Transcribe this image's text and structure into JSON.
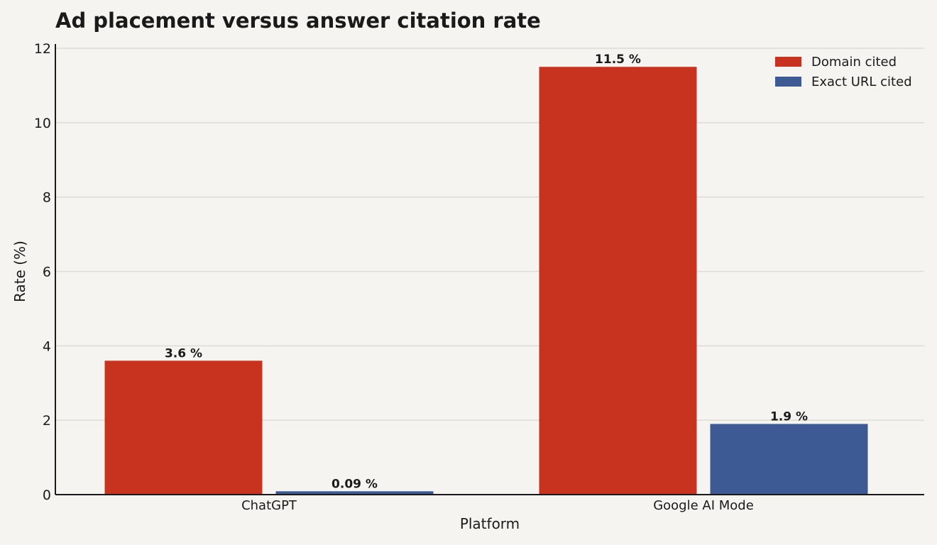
{
  "chart_data": {
    "type": "bar",
    "title": "Ad placement versus answer citation rate",
    "xlabel": "Platform",
    "ylabel": "Rate (%)",
    "categories": [
      "ChatGPT",
      "Google AI Mode"
    ],
    "series": [
      {
        "name": "Domain cited",
        "values": [
          3.6,
          11.5
        ],
        "labels": [
          "3.6 %",
          "11.5 %"
        ],
        "color": "#c8331f"
      },
      {
        "name": "Exact URL cited",
        "values": [
          0.09,
          1.9
        ],
        "labels": [
          "0.09 %",
          "1.9 %"
        ],
        "color": "#3d5a94"
      }
    ],
    "ylim": [
      0,
      12
    ],
    "yticks": [
      "0",
      "2",
      "4",
      "6",
      "8",
      "10",
      "12"
    ],
    "grid": true,
    "legend_position": "top-right",
    "colors": {
      "background": "#f5f4f0",
      "grid": "#dcdbd6",
      "axis": "#1a1a1a",
      "text": "#1a1a1a"
    }
  }
}
